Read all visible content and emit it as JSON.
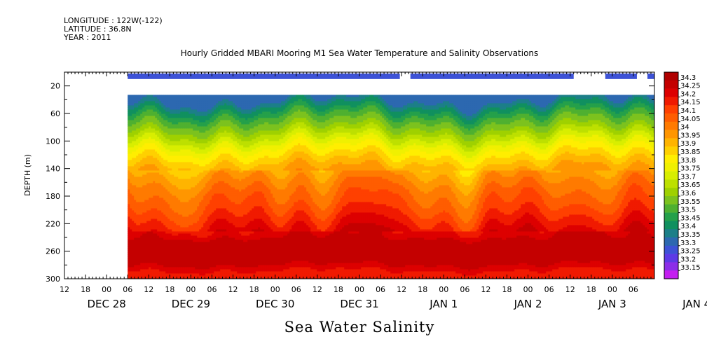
{
  "header": {
    "longitude": "LONGITUDE : 122W(-122)",
    "latitude": "LATITUDE : 36.8N",
    "year": "YEAR : 2011"
  },
  "chart_data": {
    "type": "heatmap",
    "title": "Hourly Gridded MBARI Mooring M1 Sea Water Temperature and Salinity Observations",
    "ylabel": "DEPTH (m)",
    "bottom_label": "Sea Water Salinity",
    "ylim": [
      300,
      0
    ],
    "yticks": [
      "20",
      "60",
      "100",
      "140",
      "180",
      "220",
      "260",
      "300"
    ],
    "yticks_values": [
      20,
      60,
      100,
      140,
      180,
      220,
      260,
      300
    ],
    "xlim_hours": [
      0,
      168
    ],
    "x_hour_labels": [
      "12",
      "18",
      "00",
      "06",
      "12",
      "18",
      "00",
      "06",
      "12",
      "18",
      "00",
      "06",
      "12",
      "18",
      "00",
      "06",
      "12",
      "18",
      "00",
      "06",
      "12",
      "18",
      "00",
      "06",
      "12",
      "18",
      "00",
      "06"
    ],
    "x_day_labels": [
      "DEC 28",
      "DEC 29",
      "DEC 30",
      "DEC 31",
      "JAN  1",
      "JAN  2",
      "JAN  3",
      "JAN  4"
    ],
    "surface_segments_hours": [
      [
        18,
        95.5
      ],
      [
        98.5,
        145
      ],
      [
        154,
        163
      ],
      [
        166,
        192
      ]
    ],
    "colorbar_labels": [
      "34.3",
      "34.25",
      "34.2",
      "34.15",
      "34.1",
      "34.05",
      "34",
      "33.95",
      "33.9",
      "33.85",
      "33.8",
      "33.75",
      "33.7",
      "33.65",
      "33.6",
      "33.55",
      "33.5",
      "33.45",
      "33.4",
      "33.35",
      "33.3",
      "33.25",
      "33.2",
      "33.15"
    ],
    "colors": [
      "#b00000",
      "#c40000",
      "#dd0000",
      "#f01a00",
      "#ff4000",
      "#ff5d00",
      "#ff7a00",
      "#ff9600",
      "#ffb400",
      "#ffd000",
      "#ffee00",
      "#f0f000",
      "#d8ee00",
      "#bde000",
      "#9fd100",
      "#7cc21e",
      "#4fb030",
      "#25a04a",
      "#10905f",
      "#1c7f88",
      "#2c68b0",
      "#3d52d6",
      "#5d3ae6",
      "#8c2ee8",
      "#c41ef0"
    ],
    "salinity_profile": {
      "depths": [
        35,
        45,
        55,
        65,
        80,
        95,
        110,
        125,
        140,
        155,
        170,
        185,
        200,
        215,
        230,
        245,
        260,
        275,
        290,
        300
      ],
      "values": [
        33.3,
        33.38,
        33.45,
        33.52,
        33.6,
        33.7,
        33.8,
        33.88,
        33.95,
        34.0,
        34.05,
        34.08,
        34.12,
        34.17,
        34.22,
        34.27,
        34.29,
        34.27,
        34.18,
        34.17
      ]
    }
  }
}
